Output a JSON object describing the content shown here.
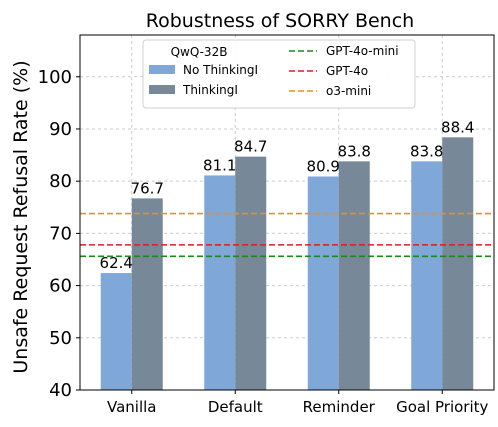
{
  "chart_data": {
    "type": "bar",
    "title": "Robustness of SORRY Bench",
    "xlabel": "",
    "ylabel": "Unsafe Request Refusal Rate (%)",
    "ylim": [
      40,
      108
    ],
    "yticks": [
      40,
      50,
      60,
      70,
      80,
      90,
      100
    ],
    "grid": true,
    "categories": [
      "Vanilla",
      "Default",
      "Reminder",
      "Goal Priority"
    ],
    "series": [
      {
        "name": "No ThinkingI",
        "values": [
          62.4,
          81.1,
          80.9,
          83.8
        ],
        "color": "#7fa7d8"
      },
      {
        "name": "ThinkingI",
        "values": [
          76.7,
          84.7,
          83.8,
          88.4
        ],
        "color": "#778899"
      }
    ],
    "value_labels": [
      [
        "62.4",
        "81.1",
        "80.9",
        "83.8"
      ],
      [
        "76.7",
        "84.7",
        "83.8",
        "88.4"
      ]
    ],
    "reference_lines": [
      {
        "name": "GPT-4o-mini",
        "value": 65.6,
        "color": "#1a8a1a"
      },
      {
        "name": "GPT-4o",
        "value": 67.8,
        "color": "#e8191a"
      },
      {
        "name": "o3-mini",
        "value": 73.8,
        "color": "#f28c1b"
      }
    ],
    "legend": {
      "title": "QwQ-32B",
      "placement": "top-center"
    }
  }
}
